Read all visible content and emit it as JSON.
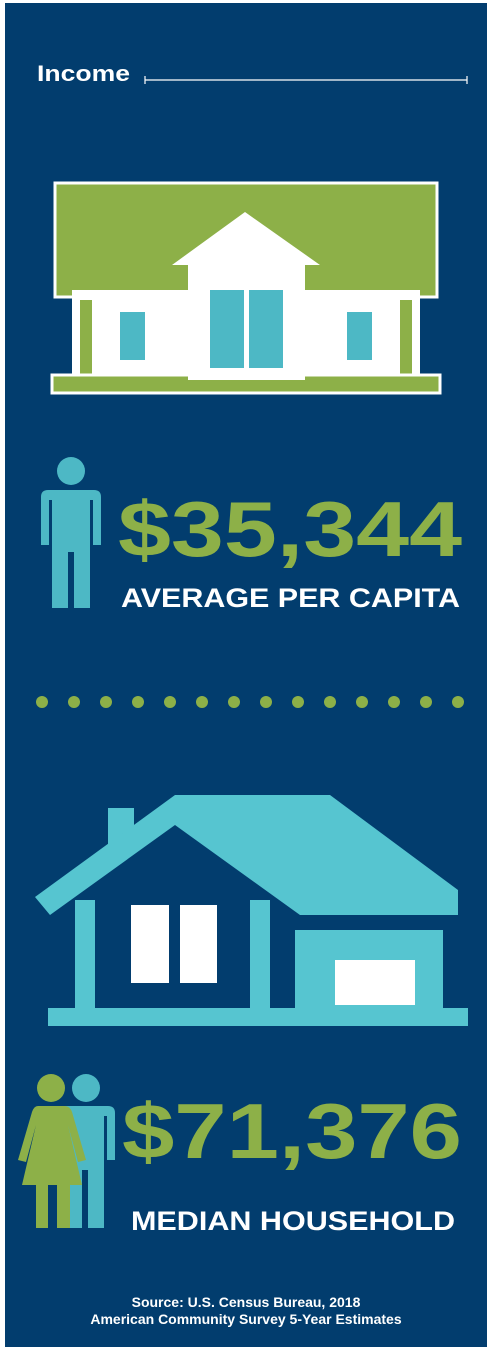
{
  "header": {
    "title": "Income"
  },
  "stats": [
    {
      "value": "$35,344",
      "label": "AVERAGE PER CAPITA"
    },
    {
      "value": "$71,376",
      "label": "MEDIAN HOUSEHOLD"
    }
  ],
  "source": [
    "Source: U.S. Census Bureau, 2018",
    "American Community Survey 5-Year Estimates"
  ]
}
